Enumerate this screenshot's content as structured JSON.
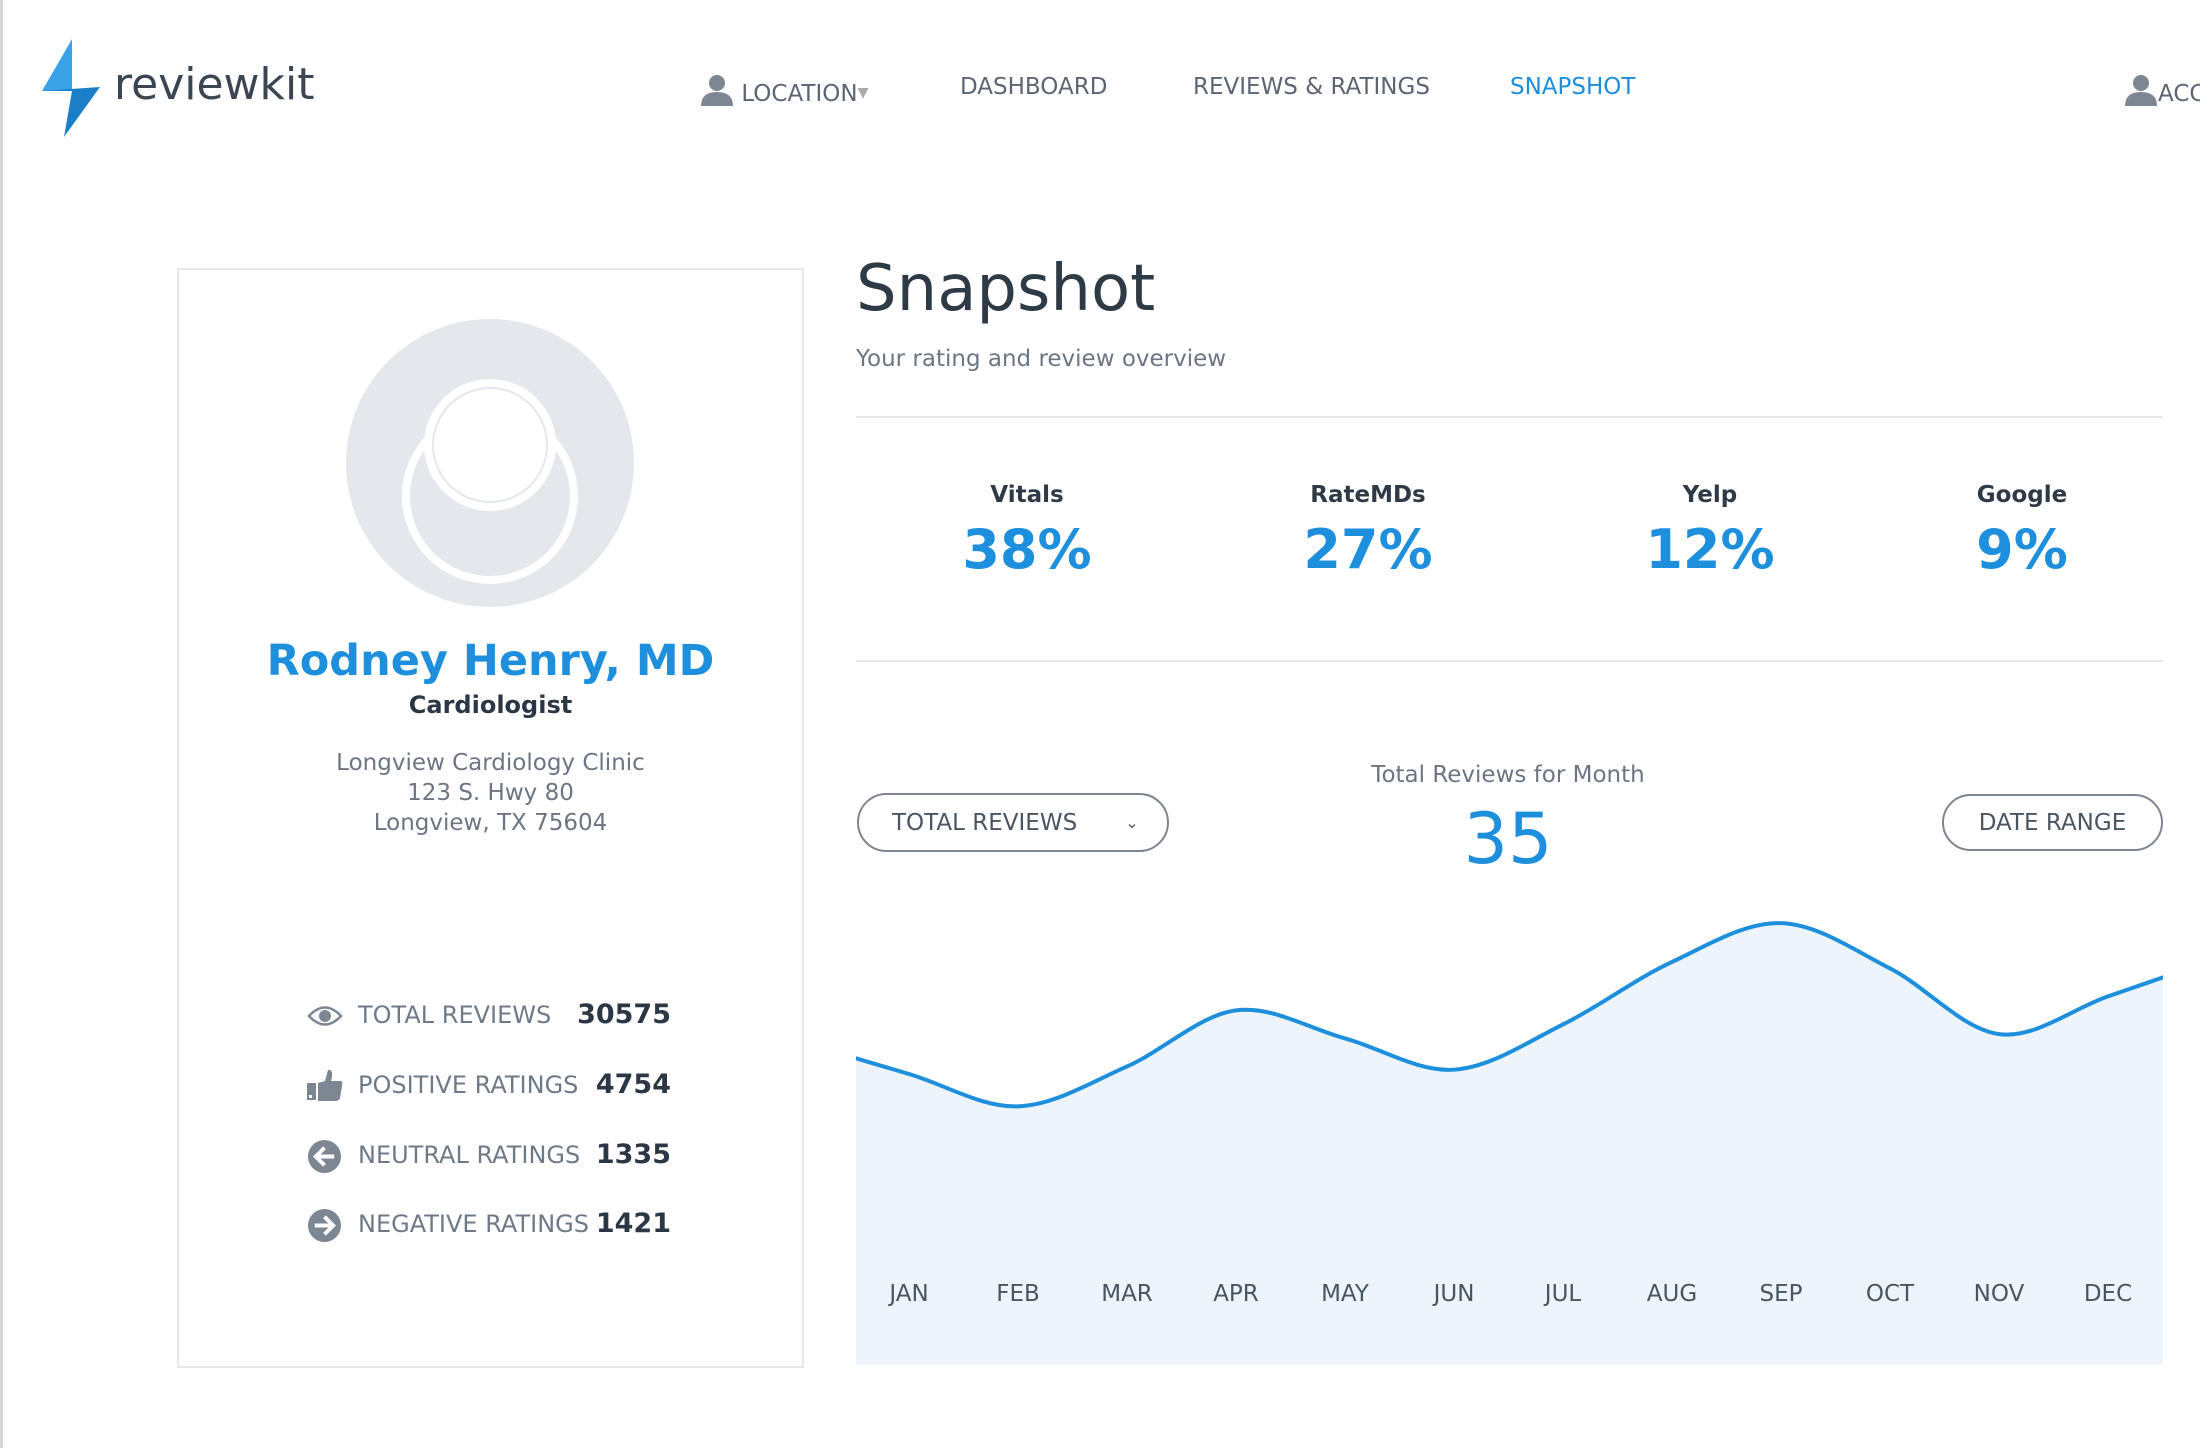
{
  "brand": {
    "name": "reviewkit",
    "color": "#1e8fdc"
  },
  "nav": {
    "location": "LOCATION",
    "dashboard": "DASHBOARD",
    "reviews": "REVIEWS & RATINGS",
    "snapshot": "SNAPSHOT",
    "account": "ACC"
  },
  "profile": {
    "name": "Rodney Henry, MD",
    "title": "Cardiologist",
    "clinic": "Longview Cardiology Clinic",
    "street": "123 S. Hwy 80",
    "city": "Longview, TX 75604"
  },
  "stats": [
    {
      "label": "TOTAL REVIEWS",
      "value": "30575",
      "icon": "eye-icon"
    },
    {
      "label": "POSITIVE RATINGS",
      "value": "4754",
      "icon": "thumbs-up-icon"
    },
    {
      "label": "NEUTRAL RATINGS",
      "value": "1335",
      "icon": "arrow-left-circle-icon"
    },
    {
      "label": "NEGATIVE RATINGS",
      "value": "1421",
      "icon": "arrow-right-circle-icon"
    }
  ],
  "page": {
    "title": "Snapshot",
    "subtitle": "Your rating and review overview"
  },
  "metrics": [
    {
      "label": "Vitals",
      "value": "38%"
    },
    {
      "label": "RateMDs",
      "value": "27%"
    },
    {
      "label": "Yelp",
      "value": "12%"
    },
    {
      "label": "Google",
      "value": "9%"
    }
  ],
  "chart_controls": {
    "dropdown": "TOTAL REVIEWS",
    "date_range": "DATE RANGE",
    "month_title": "Total Reviews for Month",
    "month_value": "35"
  },
  "chart_data": {
    "type": "area",
    "title": "Total Reviews for Month",
    "categories": [
      "JAN",
      "FEB",
      "MAR",
      "APR",
      "MAY",
      "JUN",
      "JUL",
      "AUG",
      "SEP",
      "OCT",
      "NOV",
      "DEC"
    ],
    "values": [
      27,
      24,
      27.7,
      32.9,
      30.3,
      27.4,
      31.6,
      37.4,
      41,
      36.8,
      30.7,
      34.2
    ],
    "ylim": [
      0,
      45
    ],
    "grid": false,
    "line_color": "#1e8fdc",
    "fill_color": "#edf4fb"
  }
}
